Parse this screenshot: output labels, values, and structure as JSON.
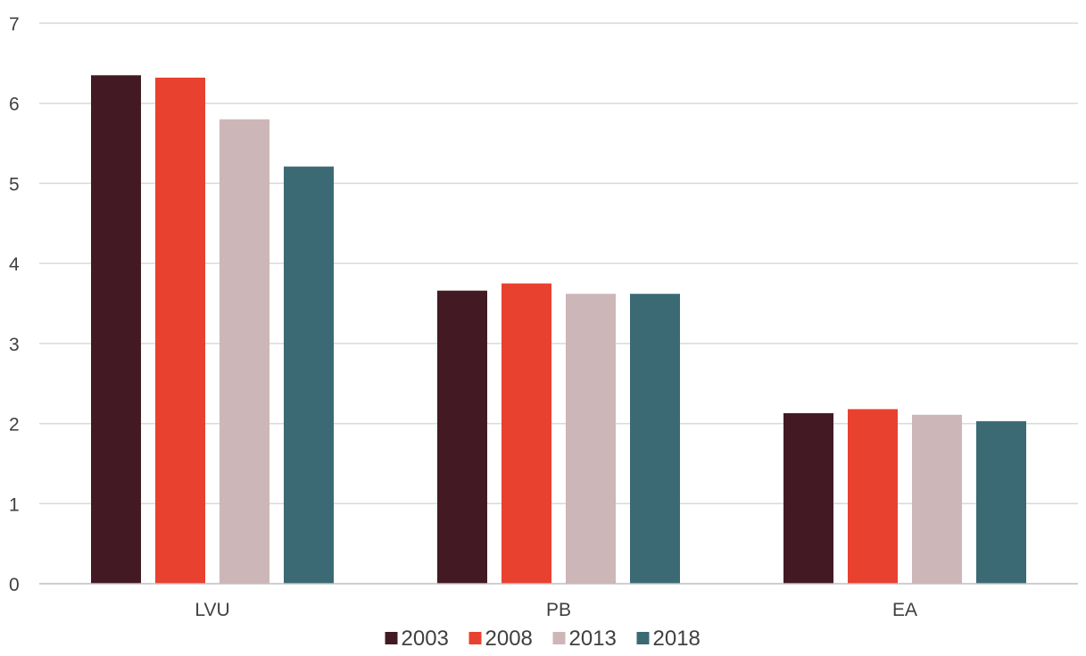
{
  "chart_data": {
    "type": "bar",
    "title": "",
    "xlabel": "",
    "ylabel": "",
    "categories": [
      "LVU",
      "PB",
      "EA"
    ],
    "series": [
      {
        "name": "2003",
        "values": [
          6.35,
          3.66,
          2.13
        ],
        "color": "#431a23"
      },
      {
        "name": "2008",
        "values": [
          6.32,
          3.75,
          2.18
        ],
        "color": "#e94130"
      },
      {
        "name": "2013",
        "values": [
          5.8,
          3.62,
          2.11
        ],
        "color": "#cdb6b7"
      },
      {
        "name": "2018",
        "values": [
          5.21,
          3.62,
          2.03
        ],
        "color": "#3b6a74"
      }
    ],
    "ylim": [
      0,
      7
    ],
    "yticks": [
      "0",
      "1",
      "2",
      "3",
      "4",
      "5",
      "6",
      "7"
    ],
    "grid": true,
    "legend_position": "bottom",
    "colors": {
      "grid": "#d9d9d9",
      "axis": "#bfbfbf",
      "text": "#404040"
    }
  }
}
